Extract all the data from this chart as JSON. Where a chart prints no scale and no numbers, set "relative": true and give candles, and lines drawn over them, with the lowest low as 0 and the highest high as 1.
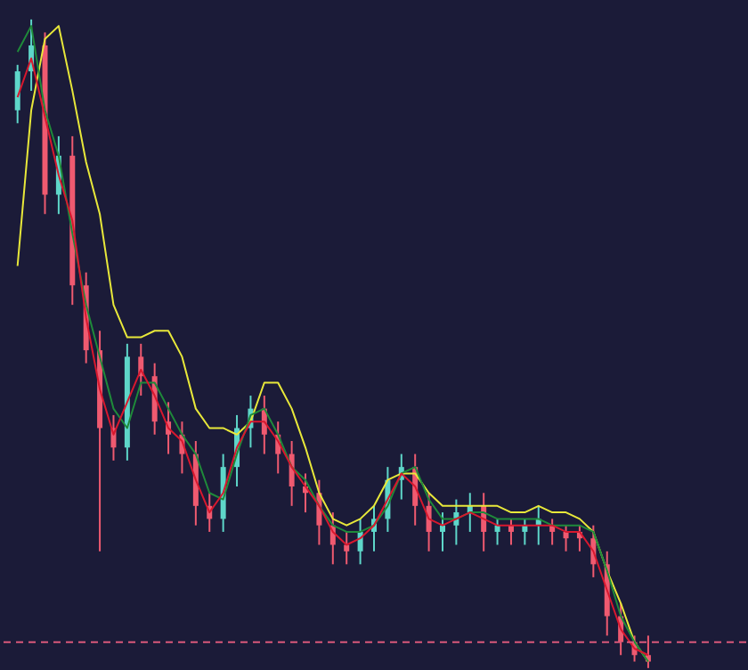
{
  "chart_data": {
    "type": "candlestick",
    "relative": true,
    "tick_labels": false,
    "categories": [
      null,
      null,
      null,
      null,
      null,
      null,
      null,
      null,
      null,
      null,
      null,
      null,
      null,
      null,
      null,
      null,
      null,
      null,
      null,
      null,
      null,
      null,
      null,
      null,
      null,
      null,
      null,
      null,
      null,
      null,
      null,
      null,
      null,
      null,
      null,
      null,
      null,
      null,
      null,
      null,
      null,
      null,
      null,
      null,
      null,
      null,
      null
    ],
    "ohlc": [
      [
        0.86,
        0.93,
        0.84,
        0.92
      ],
      [
        0.92,
        1.0,
        0.89,
        0.96
      ],
      [
        0.96,
        0.98,
        0.7,
        0.73
      ],
      [
        0.73,
        0.82,
        0.7,
        0.79
      ],
      [
        0.79,
        0.82,
        0.56,
        0.59
      ],
      [
        0.59,
        0.61,
        0.47,
        0.49
      ],
      [
        0.49,
        0.52,
        0.18,
        0.37
      ],
      [
        0.37,
        0.39,
        0.32,
        0.34
      ],
      [
        0.34,
        0.5,
        0.32,
        0.48
      ],
      [
        0.48,
        0.5,
        0.42,
        0.45
      ],
      [
        0.45,
        0.47,
        0.36,
        0.38
      ],
      [
        0.38,
        0.41,
        0.33,
        0.36
      ],
      [
        0.36,
        0.38,
        0.3,
        0.33
      ],
      [
        0.33,
        0.35,
        0.22,
        0.25
      ],
      [
        0.25,
        0.27,
        0.21,
        0.23
      ],
      [
        0.23,
        0.33,
        0.21,
        0.31
      ],
      [
        0.31,
        0.39,
        0.28,
        0.37
      ],
      [
        0.37,
        0.42,
        0.34,
        0.4
      ],
      [
        0.4,
        0.42,
        0.33,
        0.36
      ],
      [
        0.36,
        0.38,
        0.3,
        0.33
      ],
      [
        0.33,
        0.35,
        0.25,
        0.28
      ],
      [
        0.28,
        0.3,
        0.24,
        0.27
      ],
      [
        0.27,
        0.29,
        0.19,
        0.22
      ],
      [
        0.22,
        0.24,
        0.16,
        0.19
      ],
      [
        0.19,
        0.21,
        0.16,
        0.18
      ],
      [
        0.18,
        0.23,
        0.16,
        0.21
      ],
      [
        0.21,
        0.25,
        0.18,
        0.23
      ],
      [
        0.23,
        0.31,
        0.21,
        0.29
      ],
      [
        0.29,
        0.33,
        0.26,
        0.31
      ],
      [
        0.31,
        0.33,
        0.22,
        0.25
      ],
      [
        0.25,
        0.27,
        0.18,
        0.21
      ],
      [
        0.21,
        0.24,
        0.18,
        0.22
      ],
      [
        0.22,
        0.26,
        0.19,
        0.24
      ],
      [
        0.24,
        0.27,
        0.21,
        0.25
      ],
      [
        0.25,
        0.27,
        0.18,
        0.21
      ],
      [
        0.21,
        0.23,
        0.19,
        0.22
      ],
      [
        0.22,
        0.23,
        0.19,
        0.21
      ],
      [
        0.21,
        0.23,
        0.19,
        0.22
      ],
      [
        0.22,
        0.25,
        0.19,
        0.23
      ],
      [
        0.22,
        0.23,
        0.19,
        0.21
      ],
      [
        0.21,
        0.22,
        0.18,
        0.2
      ],
      [
        0.21,
        0.22,
        0.18,
        0.2
      ],
      [
        0.2,
        0.22,
        0.14,
        0.16
      ],
      [
        0.16,
        0.18,
        0.05,
        0.08
      ],
      [
        0.08,
        0.1,
        0.02,
        0.04
      ],
      [
        0.04,
        0.05,
        0.01,
        0.02
      ],
      [
        0.02,
        0.05,
        0.0,
        0.01
      ]
    ],
    "colors": [
      "#5ed6c9",
      "#5ed6c9",
      "#ef5a70",
      "#5ed6c9",
      "#ef5a70",
      "#ef5a70",
      "#ef5a70",
      "#ef5a70",
      "#5ed6c9",
      "#ef5a70",
      "#ef5a70",
      "#ef5a70",
      "#ef5a70",
      "#ef5a70",
      "#ef5a70",
      "#5ed6c9",
      "#5ed6c9",
      "#5ed6c9",
      "#ef5a70",
      "#ef5a70",
      "#ef5a70",
      "#ef5a70",
      "#ef5a70",
      "#ef5a70",
      "#ef5a70",
      "#5ed6c9",
      "#5ed6c9",
      "#5ed6c9",
      "#5ed6c9",
      "#ef5a70",
      "#ef5a70",
      "#5ed6c9",
      "#5ed6c9",
      "#5ed6c9",
      "#ef5a70",
      "#5ed6c9",
      "#ef5a70",
      "#5ed6c9",
      "#5ed6c9",
      "#ef5a70",
      "#ef5a70",
      "#ef5a70",
      "#ef5a70",
      "#ef5a70",
      "#ef5a70",
      "#ef5a70",
      "#ef5a70"
    ],
    "series": [
      {
        "type": "line",
        "color": "#e8e83a",
        "values": [
          0.62,
          0.86,
          0.97,
          0.99,
          0.89,
          0.78,
          0.7,
          0.56,
          0.51,
          0.51,
          0.52,
          0.52,
          0.48,
          0.4,
          0.37,
          0.37,
          0.36,
          0.38,
          0.44,
          0.44,
          0.4,
          0.34,
          0.27,
          0.23,
          0.22,
          0.23,
          0.25,
          0.29,
          0.3,
          0.3,
          0.27,
          0.25,
          0.25,
          0.25,
          0.25,
          0.25,
          0.24,
          0.24,
          0.25,
          0.24,
          0.24,
          0.23,
          0.21,
          0.15,
          0.1,
          0.04,
          0.01
        ]
      },
      {
        "type": "line",
        "color": "#1f8a3a",
        "values": [
          0.95,
          0.99,
          0.86,
          0.79,
          0.67,
          0.56,
          0.48,
          0.4,
          0.37,
          0.44,
          0.44,
          0.4,
          0.36,
          0.33,
          0.27,
          0.26,
          0.33,
          0.39,
          0.4,
          0.36,
          0.31,
          0.29,
          0.25,
          0.22,
          0.21,
          0.21,
          0.22,
          0.25,
          0.3,
          0.31,
          0.26,
          0.23,
          0.23,
          0.24,
          0.24,
          0.23,
          0.23,
          0.23,
          0.23,
          0.22,
          0.22,
          0.22,
          0.21,
          0.15,
          0.08,
          0.04,
          0.01
        ]
      },
      {
        "type": "line",
        "color": "#d8182e",
        "values": [
          0.88,
          0.94,
          0.85,
          0.76,
          0.69,
          0.54,
          0.43,
          0.36,
          0.41,
          0.46,
          0.42,
          0.37,
          0.35,
          0.29,
          0.24,
          0.27,
          0.34,
          0.38,
          0.38,
          0.35,
          0.31,
          0.28,
          0.25,
          0.21,
          0.19,
          0.2,
          0.22,
          0.26,
          0.3,
          0.28,
          0.23,
          0.22,
          0.23,
          0.24,
          0.23,
          0.22,
          0.22,
          0.22,
          0.22,
          0.22,
          0.21,
          0.21,
          0.18,
          0.12,
          0.06,
          0.03,
          0.02
        ]
      }
    ],
    "ref_lines": [
      {
        "axis": "y",
        "value": 0.04,
        "color": "#d9587a",
        "line_style": "dashed"
      }
    ]
  }
}
